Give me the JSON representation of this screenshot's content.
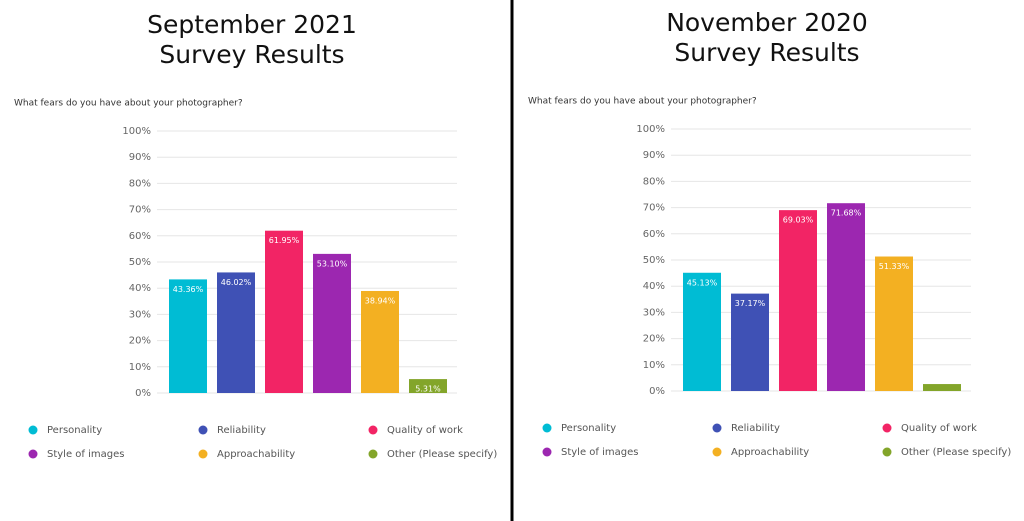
{
  "chart_data": [
    {
      "type": "bar",
      "title": [
        "September 2021",
        "Survey Results"
      ],
      "subtitle": "What fears do you have about your photographer?",
      "categories": [
        "Personality",
        "Reliability",
        "Quality of work",
        "Style of images",
        "Approachability",
        "Other (Please specify)"
      ],
      "colors": [
        "#00bcd4",
        "#3f51b5",
        "#f22465",
        "#9c27b0",
        "#f3b022",
        "#83a52a"
      ],
      "values": [
        43.36,
        46.02,
        61.95,
        53.1,
        38.94,
        5.31
      ],
      "value_labels": [
        "43.36%",
        "46.02%",
        "61.95%",
        "53.10%",
        "38.94%",
        "5.31%"
      ],
      "ylim": [
        0,
        100
      ],
      "yticks": [
        {
          "value": 0,
          "label": "0%"
        },
        {
          "value": 10,
          "label": "10%"
        },
        {
          "value": 20,
          "label": "20%"
        },
        {
          "value": 30,
          "label": "30%"
        },
        {
          "value": 40,
          "label": "40%"
        },
        {
          "value": 50,
          "label": "50%"
        },
        {
          "value": 60,
          "label": "60%"
        },
        {
          "value": 70,
          "label": "70%"
        },
        {
          "value": 80,
          "label": "80%"
        },
        {
          "value": 90,
          "label": "90%"
        },
        {
          "value": 100,
          "label": "100%"
        }
      ],
      "grid": true
    },
    {
      "type": "bar",
      "title": [
        "November 2020",
        "Survey Results"
      ],
      "subtitle": "What fears do you have about your photographer?",
      "categories": [
        "Personality",
        "Reliability",
        "Quality of work",
        "Style of images",
        "Approachability",
        "Other (Please specify)"
      ],
      "colors": [
        "#00bcd4",
        "#3f51b5",
        "#f22465",
        "#9c27b0",
        "#f3b022",
        "#83a52a"
      ],
      "values": [
        45.13,
        37.17,
        69.03,
        71.68,
        51.33,
        2.65
      ],
      "value_labels": [
        "45.13%",
        "37.17%",
        "69.03%",
        "71.68%",
        "51.33%",
        null
      ],
      "ylim": [
        0,
        100
      ],
      "yticks": [
        {
          "value": 0,
          "label": "0%"
        },
        {
          "value": 10,
          "label": "10%"
        },
        {
          "value": 20,
          "label": "20%"
        },
        {
          "value": 30,
          "label": "30%"
        },
        {
          "value": 40,
          "label": "40%"
        },
        {
          "value": 50,
          "label": "50%"
        },
        {
          "value": 60,
          "label": "60%"
        },
        {
          "value": 70,
          "label": "70%"
        },
        {
          "value": 80,
          "label": "80%"
        },
        {
          "value": 90,
          "label": "90%"
        },
        {
          "value": 100,
          "label": "100%"
        }
      ],
      "grid": true
    }
  ]
}
